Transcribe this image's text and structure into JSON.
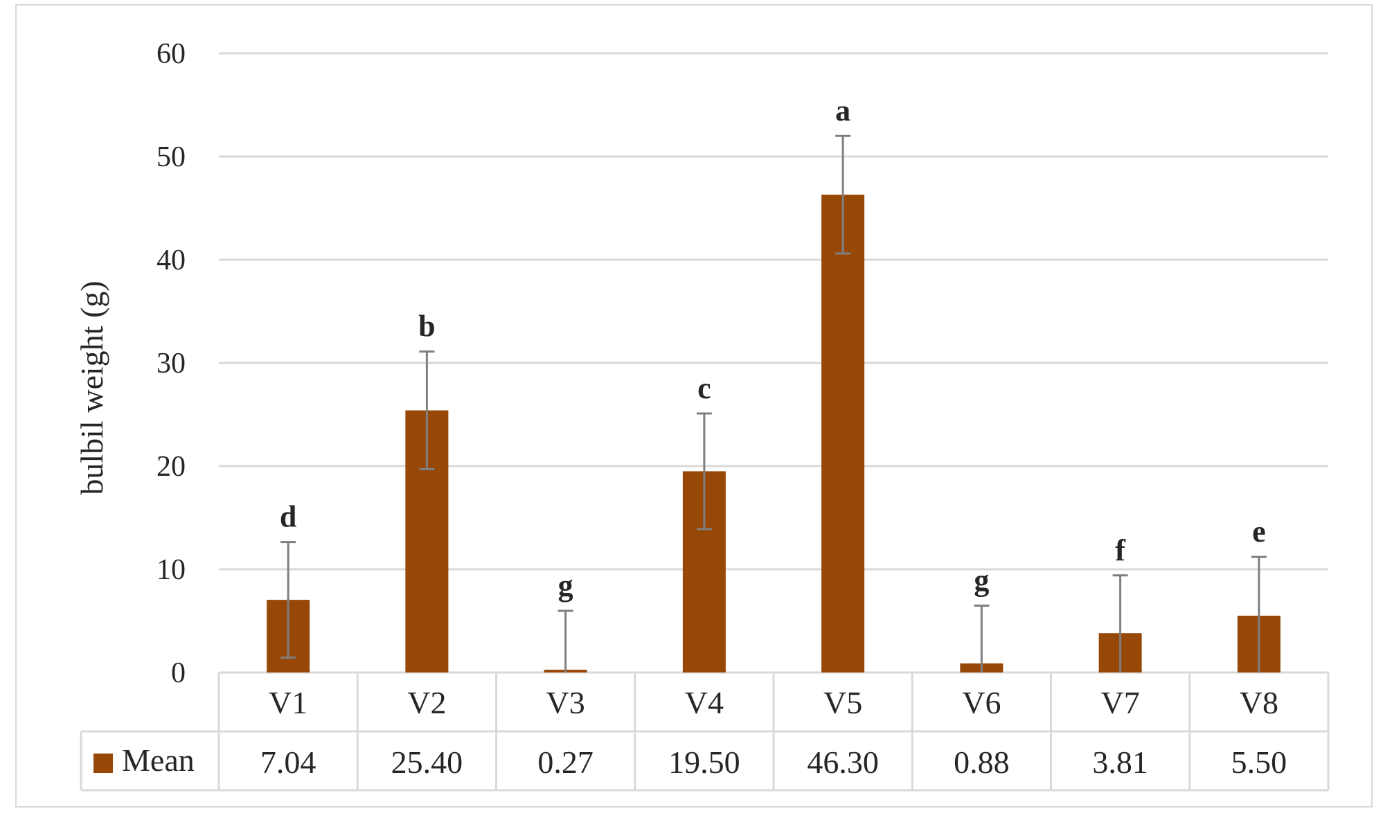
{
  "chart_data": {
    "type": "bar",
    "ylabel": "bulbil weight (g)",
    "ylim": [
      0,
      60
    ],
    "yticks": [
      "0",
      "10",
      "20",
      "30",
      "40",
      "50",
      "60"
    ],
    "grid": true,
    "data_table": true,
    "categories": [
      "V1",
      "V2",
      "V3",
      "V4",
      "V5",
      "V6",
      "V7",
      "V8"
    ],
    "series": [
      {
        "name": "Mean",
        "color": "#974706",
        "values": [
          7.04,
          25.4,
          0.27,
          19.5,
          46.3,
          0.88,
          3.81,
          5.5
        ],
        "value_labels": [
          "7.04",
          "25.40",
          "0.27",
          "19.50",
          "46.30",
          "0.88",
          "3.81",
          "5.50"
        ],
        "error_plus": [
          5.6,
          5.7,
          5.7,
          5.6,
          5.7,
          5.6,
          5.6,
          5.7
        ],
        "error_minus": [
          5.6,
          5.7,
          0.27,
          5.6,
          5.7,
          0.88,
          3.81,
          5.5
        ],
        "error_color": "#7f7f7f"
      }
    ],
    "significance_letters": [
      "d",
      "b",
      "g",
      "c",
      "a",
      "g",
      "f",
      "e"
    ]
  }
}
